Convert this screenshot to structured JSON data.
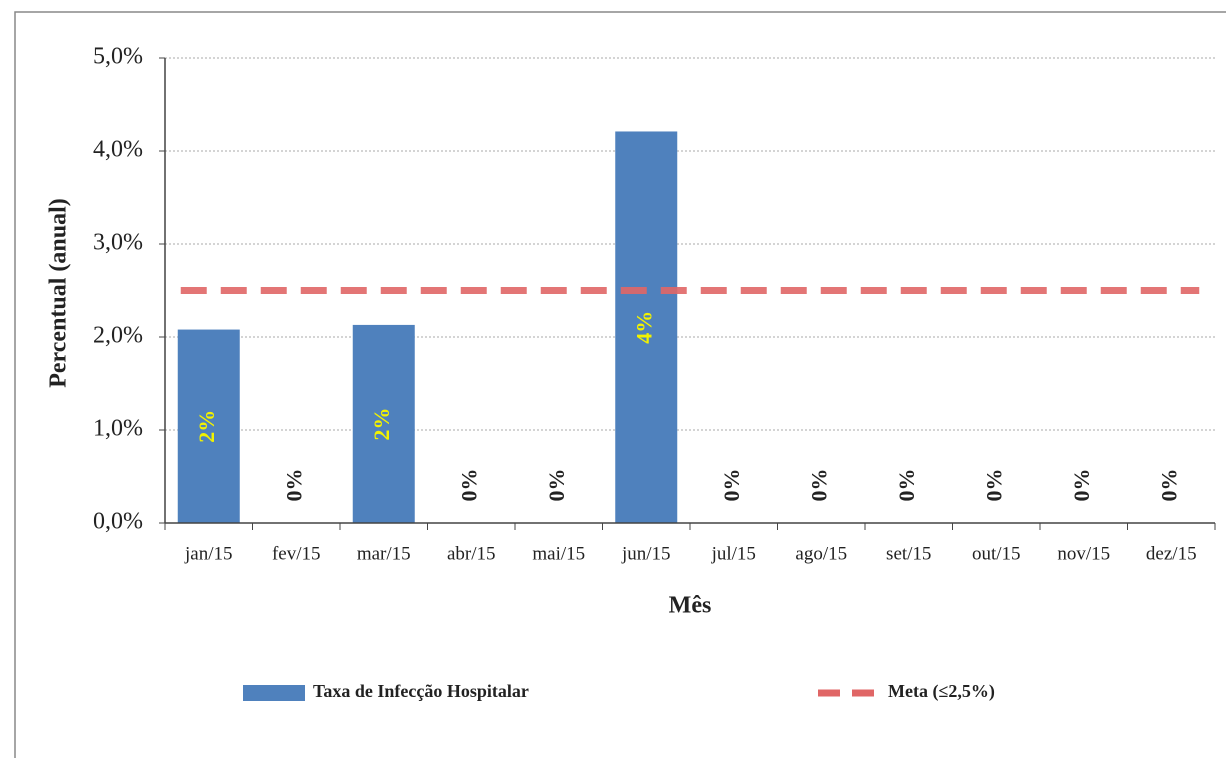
{
  "chart_data": {
    "type": "bar",
    "x_label": "Mês",
    "y_label": "Percentual (anual)",
    "categories": [
      "jan/15",
      "fev/15",
      "mar/15",
      "abr/15",
      "mai/15",
      "jun/15",
      "jul/15",
      "ago/15",
      "set/15",
      "out/15",
      "nov/15",
      "dez/15"
    ],
    "series": [
      {
        "name": "Taxa de Infecção Hospitalar",
        "type": "bar",
        "color": "#4f81bd",
        "values": [
          2.08,
          0,
          2.13,
          0,
          0,
          4.21,
          0,
          0,
          0,
          0,
          0,
          0
        ],
        "value_labels": [
          "2%",
          "0%",
          "2%",
          "0%",
          "0%",
          "4%",
          "0%",
          "0%",
          "0%",
          "0%",
          "0%",
          "0%"
        ]
      },
      {
        "name": "Meta (≤2,5%)",
        "type": "line",
        "color": "#e06666",
        "values": [
          2.5,
          2.5,
          2.5,
          2.5,
          2.5,
          2.5,
          2.5,
          2.5,
          2.5,
          2.5,
          2.5,
          2.5
        ]
      }
    ],
    "ylim": [
      0,
      5
    ],
    "yticks": [
      {
        "value": 0,
        "label": "0,0%"
      },
      {
        "value": 1,
        "label": "1,0%"
      },
      {
        "value": 2,
        "label": "2,0%"
      },
      {
        "value": 3,
        "label": "3,0%"
      },
      {
        "value": 4,
        "label": "4,0%"
      },
      {
        "value": 5,
        "label": "5,0%"
      }
    ],
    "grid": true,
    "legend": "bottom"
  }
}
